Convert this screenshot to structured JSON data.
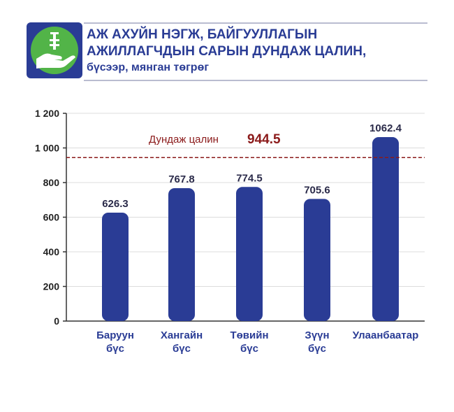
{
  "header": {
    "title_line1": "АЖ АХУЙН НЭГЖ, БАЙГУУЛЛАГЫН",
    "title_line2": "АЖИЛЛАГЧДЫН САРЫН ДУНДАЖ ЦАЛИН,",
    "subtitle": "бүсээр, мянган төгрөг",
    "logo_icon": "salary-hand-coins-icon"
  },
  "colors": {
    "bar": "#2a3c95",
    "average_line": "#8b1a1a",
    "logo_bg": "#2a3c95",
    "logo_circle": "#52b448",
    "grid": "#dcdcdc"
  },
  "chart_data": {
    "type": "bar",
    "categories": [
      [
        "Баруун",
        "бүс"
      ],
      [
        "Хангайн",
        "бүс"
      ],
      [
        "Төвийн",
        "бүс"
      ],
      [
        "Зүүн",
        "бүс"
      ],
      [
        "Улаанбаатар"
      ]
    ],
    "values": [
      626.3,
      767.8,
      774.5,
      705.6,
      1062.4
    ],
    "value_labels": [
      "626.3",
      "767.8",
      "774.5",
      "705.6",
      "1062.4"
    ],
    "ylim": [
      0,
      1200
    ],
    "yticks": [
      0,
      200,
      400,
      600,
      800,
      1000,
      1200
    ],
    "ytick_labels": [
      "0",
      "200",
      "400",
      "600",
      "800",
      "1 000",
      "1 200"
    ],
    "grid": true,
    "average": {
      "label": "Дундаж цалин",
      "value": 944.5,
      "value_label": "944.5"
    }
  }
}
